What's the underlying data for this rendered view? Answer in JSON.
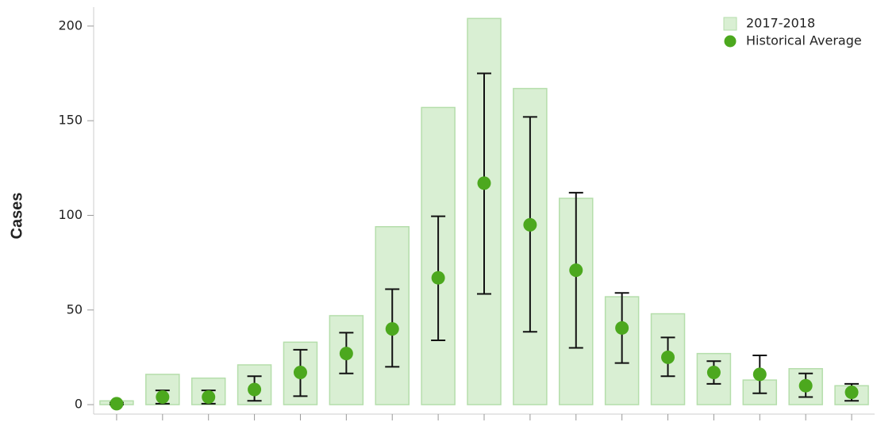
{
  "chart_data": {
    "type": "bar",
    "y_label": "Cases",
    "categories": [
      null,
      null,
      null,
      null,
      null,
      null,
      null,
      null,
      null,
      null,
      null,
      null,
      null,
      null,
      null,
      null,
      null
    ],
    "series": [
      {
        "name": "2017-2018",
        "type": "bar",
        "color": "#d9efd3",
        "edge_color": "#b5deab",
        "values": [
          2,
          16,
          14,
          21,
          33,
          47,
          94,
          157,
          204,
          167,
          109,
          57,
          48,
          27,
          13,
          19,
          10
        ]
      },
      {
        "name": "Historical Average",
        "type": "scatter",
        "color": "#4ca81e",
        "error_color": "#111111",
        "values": [
          0.5,
          4,
          4,
          8,
          17,
          27,
          40,
          67,
          117,
          95,
          71,
          40.5,
          25,
          17,
          16,
          10,
          6.5
        ],
        "error_low": [
          0,
          0.5,
          0.5,
          2,
          4.5,
          16.5,
          20,
          34,
          58.5,
          38.5,
          30,
          22,
          15,
          11,
          6,
          4,
          2
        ],
        "error_high": [
          1,
          7.5,
          7.5,
          15,
          29,
          38,
          61,
          99.5,
          175,
          152,
          112,
          59,
          35.5,
          23,
          26,
          16.5,
          11
        ]
      }
    ],
    "ylim": [
      -5,
      210
    ],
    "yticks": [
      0,
      50,
      100,
      150,
      200
    ],
    "grid": false,
    "legend": "upper right"
  }
}
